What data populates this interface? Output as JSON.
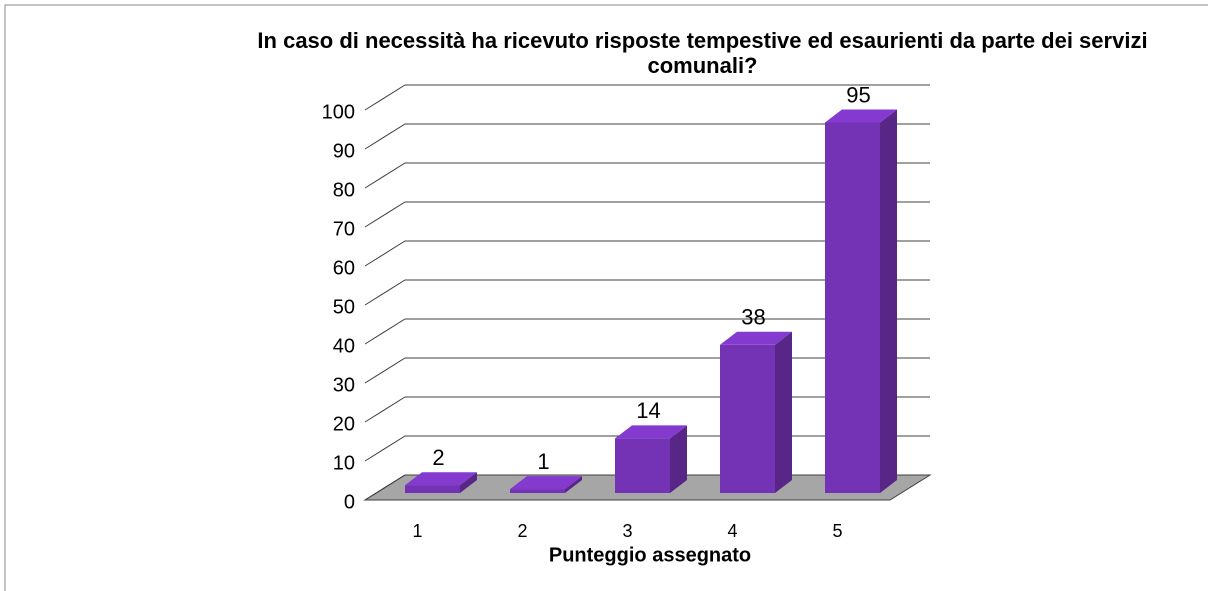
{
  "chart_data": {
    "type": "bar3d",
    "title": "In caso di necessità ha ricevuto risposte tempestive ed esaurienti da parte dei servizi comunali?",
    "x_label": "Punteggio assegnato",
    "categories": [
      "1",
      "2",
      "3",
      "4",
      "5"
    ],
    "values": [
      2,
      1,
      14,
      38,
      95
    ],
    "color": "#7432b4",
    "ylim": [
      0,
      100
    ],
    "yticks": [
      0,
      10,
      20,
      30,
      40,
      50,
      60,
      70,
      80,
      90,
      100
    ],
    "grid": true
  }
}
